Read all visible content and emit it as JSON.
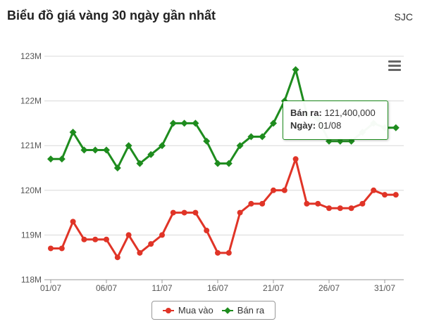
{
  "header": {
    "title": "Biểu đồ giá vàng 30 ngày gần nhất",
    "source": "SJC"
  },
  "colors": {
    "buy": "#e03427",
    "sell": "#1e8c1e",
    "grid": "#d8d8d8",
    "axis": "#555555"
  },
  "menu": {
    "icon": "hamburger-menu-icon"
  },
  "tooltip": {
    "series_label": "Bán ra",
    "value": "121,400,000",
    "date_label": "Ngày",
    "date": "01/08"
  },
  "chart_data": {
    "type": "line",
    "title": "Biểu đồ giá vàng 30 ngày gần nhất",
    "x_tick_labels": [
      "01/07",
      "06/07",
      "11/07",
      "16/07",
      "21/07",
      "26/07",
      "31/07"
    ],
    "y_tick_labels": [
      "118M",
      "119M",
      "120M",
      "121M",
      "122M",
      "123M"
    ],
    "ylim": [
      118,
      123
    ],
    "y_unit": "M",
    "x": [
      "01/07",
      "02/07",
      "03/07",
      "04/07",
      "05/07",
      "06/07",
      "07/07",
      "08/07",
      "09/07",
      "10/07",
      "11/07",
      "12/07",
      "13/07",
      "14/07",
      "15/07",
      "16/07",
      "17/07",
      "18/07",
      "19/07",
      "20/07",
      "21/07",
      "22/07",
      "23/07",
      "24/07",
      "25/07",
      "26/07",
      "27/07",
      "28/07",
      "29/07",
      "30/07",
      "31/07",
      "01/08"
    ],
    "legend_position": "bottom-center",
    "grid": true,
    "series": [
      {
        "name": "Mua vào",
        "values": [
          118.7,
          118.7,
          119.3,
          118.9,
          118.9,
          118.9,
          118.5,
          119.0,
          118.6,
          118.8,
          119.0,
          119.5,
          119.5,
          119.5,
          119.1,
          118.6,
          118.6,
          119.5,
          119.7,
          119.7,
          120.0,
          120.0,
          120.7,
          119.7,
          119.7,
          119.6,
          119.6,
          119.6,
          119.7,
          120.0,
          119.9,
          119.9
        ]
      },
      {
        "name": "Bán ra",
        "values": [
          120.7,
          120.7,
          121.3,
          120.9,
          120.9,
          120.9,
          120.5,
          121.0,
          120.6,
          120.8,
          121.0,
          121.5,
          121.5,
          121.5,
          121.1,
          120.6,
          120.6,
          121.0,
          121.2,
          121.2,
          121.5,
          122.0,
          122.7,
          121.7,
          121.6,
          121.1,
          121.1,
          121.1,
          121.3,
          121.5,
          121.4,
          121.4
        ]
      }
    ]
  }
}
